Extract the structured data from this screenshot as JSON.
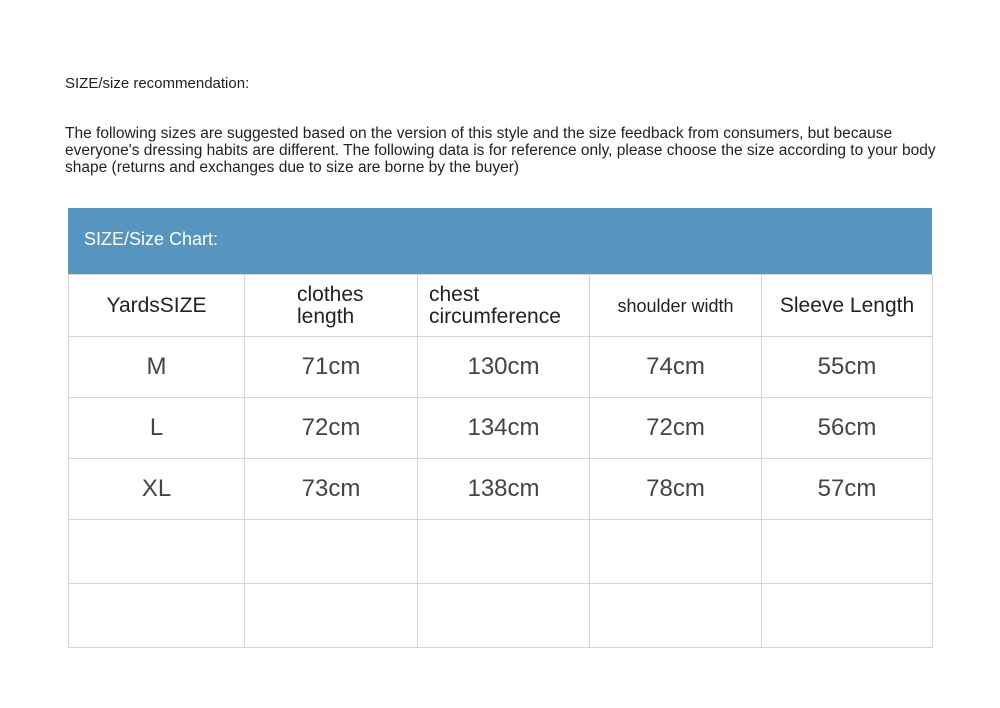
{
  "recommendation_title": "SIZE/size recommendation:",
  "notice": "The following sizes are suggested based on the version of this style and the size feedback from consumers, but because everyone's dressing habits are different. The following data is for reference only, please choose the size according to your body shape (returns and exchanges due to size are borne by the buyer)",
  "chart": {
    "title": "SIZE/Size Chart:",
    "header_color": "#5595bf",
    "columns": [
      "YardsSIZE",
      "clothes length",
      "chest circumference",
      "shoulder width",
      "Sleeve Length"
    ],
    "rows": [
      [
        "M",
        "71cm",
        "130cm",
        "74cm",
        "55cm"
      ],
      [
        "L",
        "72cm",
        "134cm",
        "72cm",
        "56cm"
      ],
      [
        "XL",
        "73cm",
        "138cm",
        "78cm",
        "57cm"
      ]
    ]
  }
}
